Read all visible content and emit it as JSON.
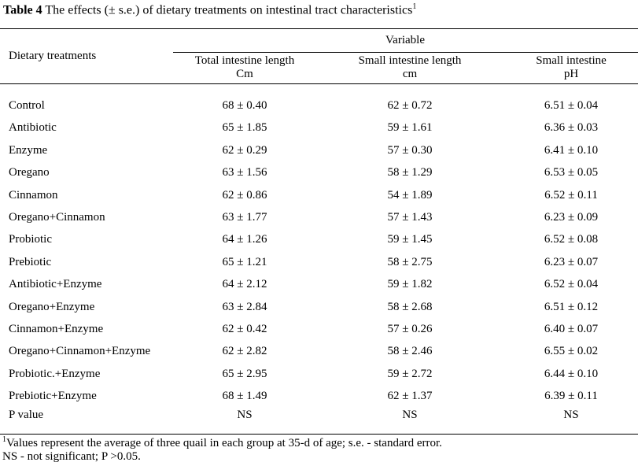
{
  "title": {
    "label": "Table 4",
    "text": " The effects (± s.e.) of dietary treatments on intestinal tract characteristics",
    "sup": "1"
  },
  "header": {
    "row_label": "Dietary treatments",
    "group": "Variable",
    "columns": [
      {
        "name": "Total intestine length",
        "unit": "Cm"
      },
      {
        "name": "Small intestine length",
        "unit": "cm"
      },
      {
        "name": "Small intestine",
        "unit": "pH"
      }
    ]
  },
  "rows": [
    {
      "treatment": "Control",
      "values": [
        "68 ± 0.40",
        "62 ± 0.72",
        "6.51 ± 0.04"
      ]
    },
    {
      "treatment": "Antibiotic",
      "values": [
        "65 ± 1.85",
        "59 ± 1.61",
        "6.36 ± 0.03"
      ]
    },
    {
      "treatment": "Enzyme",
      "values": [
        "62 ± 0.29",
        "57 ± 0.30",
        "6.41 ± 0.10"
      ]
    },
    {
      "treatment": "Oregano",
      "values": [
        "63 ± 1.56",
        "58 ± 1.29",
        "6.53 ± 0.05"
      ]
    },
    {
      "treatment": "Cinnamon",
      "values": [
        "62 ± 0.86",
        "54 ± 1.89",
        "6.52 ± 0.11"
      ]
    },
    {
      "treatment": "Oregano+Cinnamon",
      "values": [
        "63 ± 1.77",
        "57 ± 1.43",
        "6.23 ± 0.09"
      ]
    },
    {
      "treatment": "Probiotic",
      "values": [
        "64 ± 1.26",
        "59 ± 1.45",
        "6.52 ± 0.08"
      ]
    },
    {
      "treatment": "Prebiotic",
      "values": [
        "65 ± 1.21",
        "58 ± 2.75",
        "6.23 ± 0.07"
      ]
    },
    {
      "treatment": "Antibiotic+Enzyme",
      "values": [
        "64 ± 2.12",
        "59 ± 1.82",
        "6.52 ± 0.04"
      ]
    },
    {
      "treatment": "Oregano+Enzyme",
      "values": [
        "63 ± 2.84",
        "58 ± 2.68",
        "6.51 ± 0.12"
      ]
    },
    {
      "treatment": "Cinnamon+Enzyme",
      "values": [
        "62 ± 0.42",
        "57 ± 0.26",
        "6.40 ± 0.07"
      ]
    },
    {
      "treatment": "Oregano+Cinnamon+Enzyme",
      "values": [
        "62 ± 2.82",
        "58 ± 2.46",
        "6.55 ± 0.02"
      ]
    },
    {
      "treatment": "Probiotic.+Enzyme",
      "values": [
        "65 ± 2.95",
        "59 ± 2.72",
        "6.44 ± 0.10"
      ]
    },
    {
      "treatment": "Prebiotic+Enzyme",
      "values": [
        "68 ± 1.49",
        "62 ± 1.37",
        "6.39 ± 0.11"
      ]
    }
  ],
  "p_value": {
    "label": "P value",
    "values": [
      "NS",
      "NS",
      "NS"
    ]
  },
  "footnotes": {
    "sup": "1",
    "line1": "Values represent the average of three quail in each group at 35-d of age; s.e. - standard error.",
    "line2": "NS - not significant; P >0.05."
  }
}
